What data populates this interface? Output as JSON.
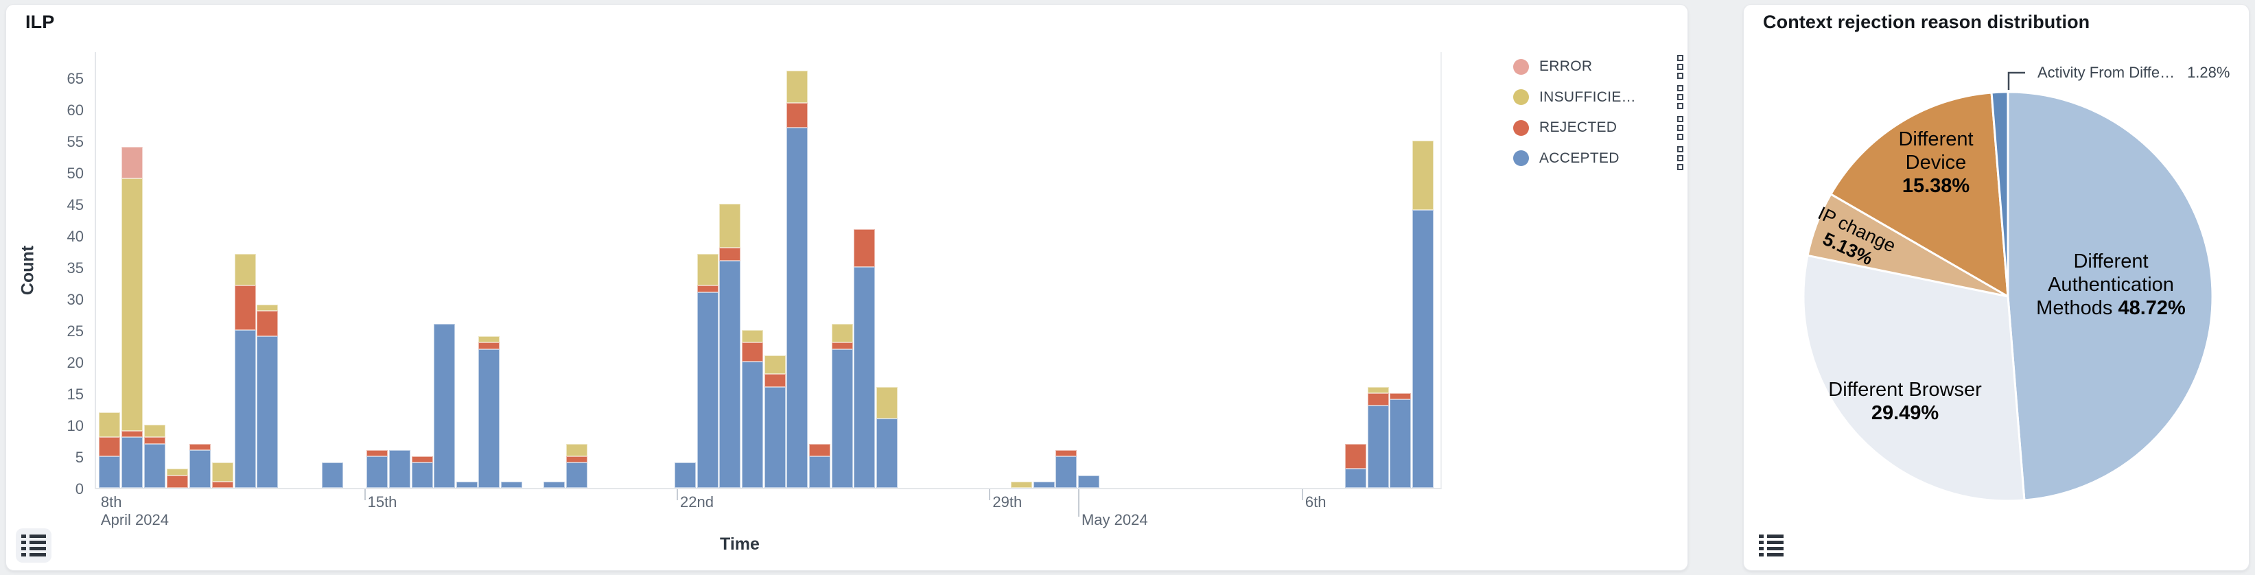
{
  "page": {
    "background": "#edeff1"
  },
  "ilp": {
    "title": "ILP",
    "legend": [
      {
        "label": "ERROR",
        "color": "#e7a49b",
        "series": "error"
      },
      {
        "label": "INSUFFICIE…",
        "color": "#d7c471",
        "series": "insufficient"
      },
      {
        "label": "REJECTED",
        "color": "#d7694f",
        "series": "rejected"
      },
      {
        "label": "ACCEPTED",
        "color": "#6d92c3",
        "series": "accepted"
      }
    ],
    "y_axis": {
      "label": "Count",
      "ticks": [
        0,
        5,
        10,
        15,
        20,
        25,
        30,
        35,
        40,
        45,
        50,
        55,
        60,
        65
      ],
      "max": 69.2
    },
    "x_axis": {
      "label": "Time",
      "ticks": [
        {
          "label": "8th",
          "sub": "April 2024",
          "x_pct": 0.2,
          "line": false,
          "month": false
        },
        {
          "label": "15th",
          "x_pct": 20.0,
          "line": true,
          "month": false
        },
        {
          "label": "22nd",
          "x_pct": 43.2,
          "line": true,
          "month": false
        },
        {
          "label": "29th",
          "x_pct": 66.4,
          "line": true,
          "month": false
        },
        {
          "label": "May 2024",
          "x_pct": 73.0,
          "line": true,
          "month": true
        },
        {
          "label": "6th",
          "x_pct": 89.6,
          "line": true,
          "month": false
        }
      ]
    },
    "chart_data": {
      "type": "bar",
      "stacked": true,
      "interval": "12h",
      "xlabel": "Time",
      "ylabel": "Count",
      "ylim": [
        0,
        69.2
      ],
      "bar_width_pct": 1.58,
      "series_order": [
        "accepted",
        "rejected",
        "insufficient",
        "error"
      ],
      "colors": {
        "accepted": "#6d92c3",
        "rejected": "#d5694e",
        "insufficient": "#d8c77b",
        "error": "#e5a49a"
      },
      "bars": [
        {
          "x_pct": 0.2,
          "accepted": 5,
          "rejected": 3,
          "insufficient": 4,
          "error": 0
        },
        {
          "x_pct": 1.88,
          "accepted": 8,
          "rejected": 1,
          "insufficient": 40,
          "error": 5
        },
        {
          "x_pct": 3.57,
          "accepted": 7,
          "rejected": 1,
          "insufficient": 2,
          "error": 0
        },
        {
          "x_pct": 5.25,
          "accepted": 0,
          "rejected": 2,
          "insufficient": 1,
          "error": 0
        },
        {
          "x_pct": 6.93,
          "accepted": 6,
          "rejected": 1,
          "insufficient": 0,
          "error": 0
        },
        {
          "x_pct": 8.61,
          "accepted": 0,
          "rejected": 1,
          "insufficient": 3,
          "error": 0
        },
        {
          "x_pct": 10.29,
          "accepted": 25,
          "rejected": 7,
          "insufficient": 5,
          "error": 0
        },
        {
          "x_pct": 11.97,
          "accepted": 24,
          "rejected": 4,
          "insufficient": 1,
          "error": 0
        },
        {
          "x_pct": 16.81,
          "accepted": 4,
          "rejected": 0,
          "insufficient": 0,
          "error": 0
        },
        {
          "x_pct": 20.12,
          "accepted": 5,
          "rejected": 1,
          "insufficient": 0,
          "error": 0
        },
        {
          "x_pct": 21.8,
          "accepted": 6,
          "rejected": 0,
          "insufficient": 0,
          "error": 0
        },
        {
          "x_pct": 23.48,
          "accepted": 4,
          "rejected": 1,
          "insufficient": 0,
          "error": 0
        },
        {
          "x_pct": 25.11,
          "accepted": 26,
          "rejected": 0,
          "insufficient": 0,
          "error": 0
        },
        {
          "x_pct": 26.79,
          "accepted": 1,
          "rejected": 0,
          "insufficient": 0,
          "error": 0
        },
        {
          "x_pct": 28.43,
          "accepted": 22,
          "rejected": 1,
          "insufficient": 1,
          "error": 0
        },
        {
          "x_pct": 30.11,
          "accepted": 1,
          "rejected": 0,
          "insufficient": 0,
          "error": 0
        },
        {
          "x_pct": 33.27,
          "accepted": 1,
          "rejected": 0,
          "insufficient": 0,
          "error": 0
        },
        {
          "x_pct": 34.95,
          "accepted": 4,
          "rejected": 1,
          "insufficient": 2,
          "error": 0
        },
        {
          "x_pct": 43.05,
          "accepted": 4,
          "rejected": 0,
          "insufficient": 0,
          "error": 0
        },
        {
          "x_pct": 44.73,
          "accepted": 31,
          "rejected": 1,
          "insufficient": 5,
          "error": 0
        },
        {
          "x_pct": 46.36,
          "accepted": 36,
          "rejected": 2,
          "insufficient": 7,
          "error": 0
        },
        {
          "x_pct": 48.04,
          "accepted": 20,
          "rejected": 3,
          "insufficient": 2,
          "error": 0
        },
        {
          "x_pct": 49.72,
          "accepted": 16,
          "rejected": 2,
          "insufficient": 3,
          "error": 0
        },
        {
          "x_pct": 51.35,
          "accepted": 57,
          "rejected": 4,
          "insufficient": 5,
          "error": 0
        },
        {
          "x_pct": 53.03,
          "accepted": 5,
          "rejected": 2,
          "insufficient": 0,
          "error": 0
        },
        {
          "x_pct": 54.71,
          "accepted": 22,
          "rejected": 1,
          "insufficient": 3,
          "error": 0
        },
        {
          "x_pct": 56.34,
          "accepted": 35,
          "rejected": 6,
          "insufficient": 0,
          "error": 0
        },
        {
          "x_pct": 58.02,
          "accepted": 11,
          "rejected": 0,
          "insufficient": 5,
          "error": 0
        },
        {
          "x_pct": 68.06,
          "accepted": 0,
          "rejected": 0,
          "insufficient": 1,
          "error": 0
        },
        {
          "x_pct": 69.74,
          "accepted": 1,
          "rejected": 0,
          "insufficient": 0,
          "error": 0
        },
        {
          "x_pct": 71.37,
          "accepted": 5,
          "rejected": 1,
          "insufficient": 0,
          "error": 0
        },
        {
          "x_pct": 73.05,
          "accepted": 2,
          "rejected": 0,
          "insufficient": 0,
          "error": 0
        },
        {
          "x_pct": 92.92,
          "accepted": 3,
          "rejected": 4,
          "insufficient": 0,
          "error": 0
        },
        {
          "x_pct": 94.6,
          "accepted": 13,
          "rejected": 2,
          "insufficient": 1,
          "error": 0
        },
        {
          "x_pct": 96.23,
          "accepted": 14,
          "rejected": 1,
          "insufficient": 0,
          "error": 0
        },
        {
          "x_pct": 97.91,
          "accepted": 44,
          "rejected": 0,
          "insufficient": 11,
          "error": 0
        }
      ]
    }
  },
  "pie": {
    "title": "Context rejection reason distribution",
    "chart_data": {
      "type": "pie",
      "start_angle_deg": 0,
      "clockwise": true,
      "slices": [
        {
          "label": "Different Authentication Methods",
          "pct": 48.72,
          "color": "#abc2dc"
        },
        {
          "label": "Different Browser",
          "pct": 29.49,
          "color": "#e9edf3"
        },
        {
          "label": "IP change",
          "pct": 5.13,
          "color": "#dcb58b"
        },
        {
          "label": "Different Device",
          "pct": 15.38,
          "color": "#d0904f"
        },
        {
          "label": "Activity From Diffe…",
          "pct": 1.28,
          "color": "#5f89bb"
        }
      ]
    },
    "labels": {
      "device": {
        "l1": "Different",
        "l2": "Device",
        "pct": "15.38%"
      },
      "ip": {
        "l1": "IP change",
        "pct": "5.13%"
      },
      "auth": {
        "l1": "Different",
        "l2": "Authentication",
        "l3": "Methods ",
        "pct": "48.72%"
      },
      "browser": {
        "l1": "Different Browser",
        "pct": "29.49%"
      },
      "activity": {
        "l1": "Activity From Diffe…",
        "pct": "1.28%"
      }
    }
  }
}
